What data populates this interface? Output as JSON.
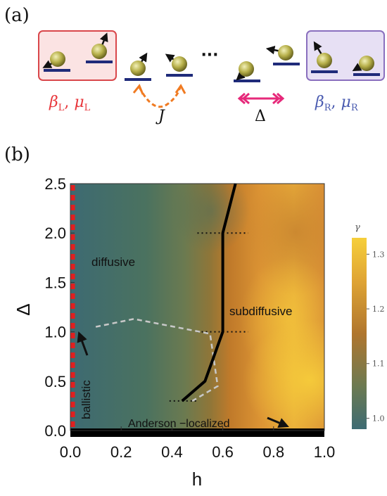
{
  "panel_a": {
    "label": "(a)",
    "ellipsis": "···",
    "left_bath": {
      "beta": "β",
      "beta_sub": "L",
      "mu": "μ",
      "mu_sub": "L",
      "sep": ", ",
      "color": "#e8373c",
      "box_fill": "#fbe3e3",
      "box_stroke": "#d9474b"
    },
    "right_bath": {
      "beta": "β",
      "beta_sub": "R",
      "mu": "μ",
      "mu_sub": "R",
      "sep": ", ",
      "color": "#4a5bb0",
      "box_fill": "#e7e0f4",
      "box_stroke": "#8a6fbe"
    },
    "hopping_label": "J",
    "hopping_color": "#f07b22",
    "anisotropy_label": "Δ",
    "anisotropy_color": "#e6297a",
    "spin_color": "#b7b04a",
    "level_color": "#1f2b7a"
  },
  "panel_b": {
    "label": "(b)",
    "regions": {
      "diffusive": "diffusive",
      "subdiffusive": "subdiffusive",
      "ballistic": "ballistic",
      "anderson": "Anderson −localized"
    },
    "colorbar": {
      "title": "γ",
      "ticks": [
        "1.0",
        "1.1",
        "1.2",
        "1.3"
      ],
      "tick_values": [
        1.0,
        1.1,
        1.2,
        1.3
      ],
      "min": 0.98,
      "max": 1.33,
      "colors": [
        "#3d6b73",
        "#6b7a52",
        "#b0762e",
        "#e0a534",
        "#f6cf3a"
      ]
    }
  },
  "chart_data": {
    "type": "heatmap",
    "xlabel": "h",
    "ylabel": "Δ",
    "xlim": [
      0.0,
      1.0
    ],
    "ylim": [
      0.0,
      2.5
    ],
    "x_ticks": [
      "0.0",
      "0.2",
      "0.4",
      "0.6",
      "0.8",
      "1.0"
    ],
    "x_tick_values": [
      0.0,
      0.2,
      0.4,
      0.6,
      0.8,
      1.0
    ],
    "y_ticks": [
      "0.0",
      "0.5",
      "1.0",
      "1.5",
      "2.0",
      "2.5"
    ],
    "y_tick_values": [
      0.0,
      0.5,
      1.0,
      1.5,
      2.0,
      2.5
    ],
    "boundary_solid": [
      [
        0.44,
        0.3
      ],
      [
        0.53,
        0.5
      ],
      [
        0.6,
        1.0
      ],
      [
        0.6,
        2.0
      ],
      [
        0.65,
        2.5
      ]
    ],
    "boundary_dashed": [
      [
        0.1,
        1.05
      ],
      [
        0.25,
        1.13
      ],
      [
        0.55,
        0.98
      ],
      [
        0.58,
        0.45
      ],
      [
        0.48,
        0.3
      ]
    ],
    "dotted_levels": [
      {
        "y": 2.0,
        "x": [
          0.5,
          0.7
        ]
      },
      {
        "y": 1.0,
        "x": [
          0.5,
          0.7
        ]
      },
      {
        "y": 0.3,
        "x": [
          0.39,
          0.5
        ]
      }
    ],
    "anderson_band": {
      "y": [
        0.0,
        0.06
      ]
    },
    "ballistic_line": {
      "x": 0.0,
      "color": "#e02020"
    }
  }
}
